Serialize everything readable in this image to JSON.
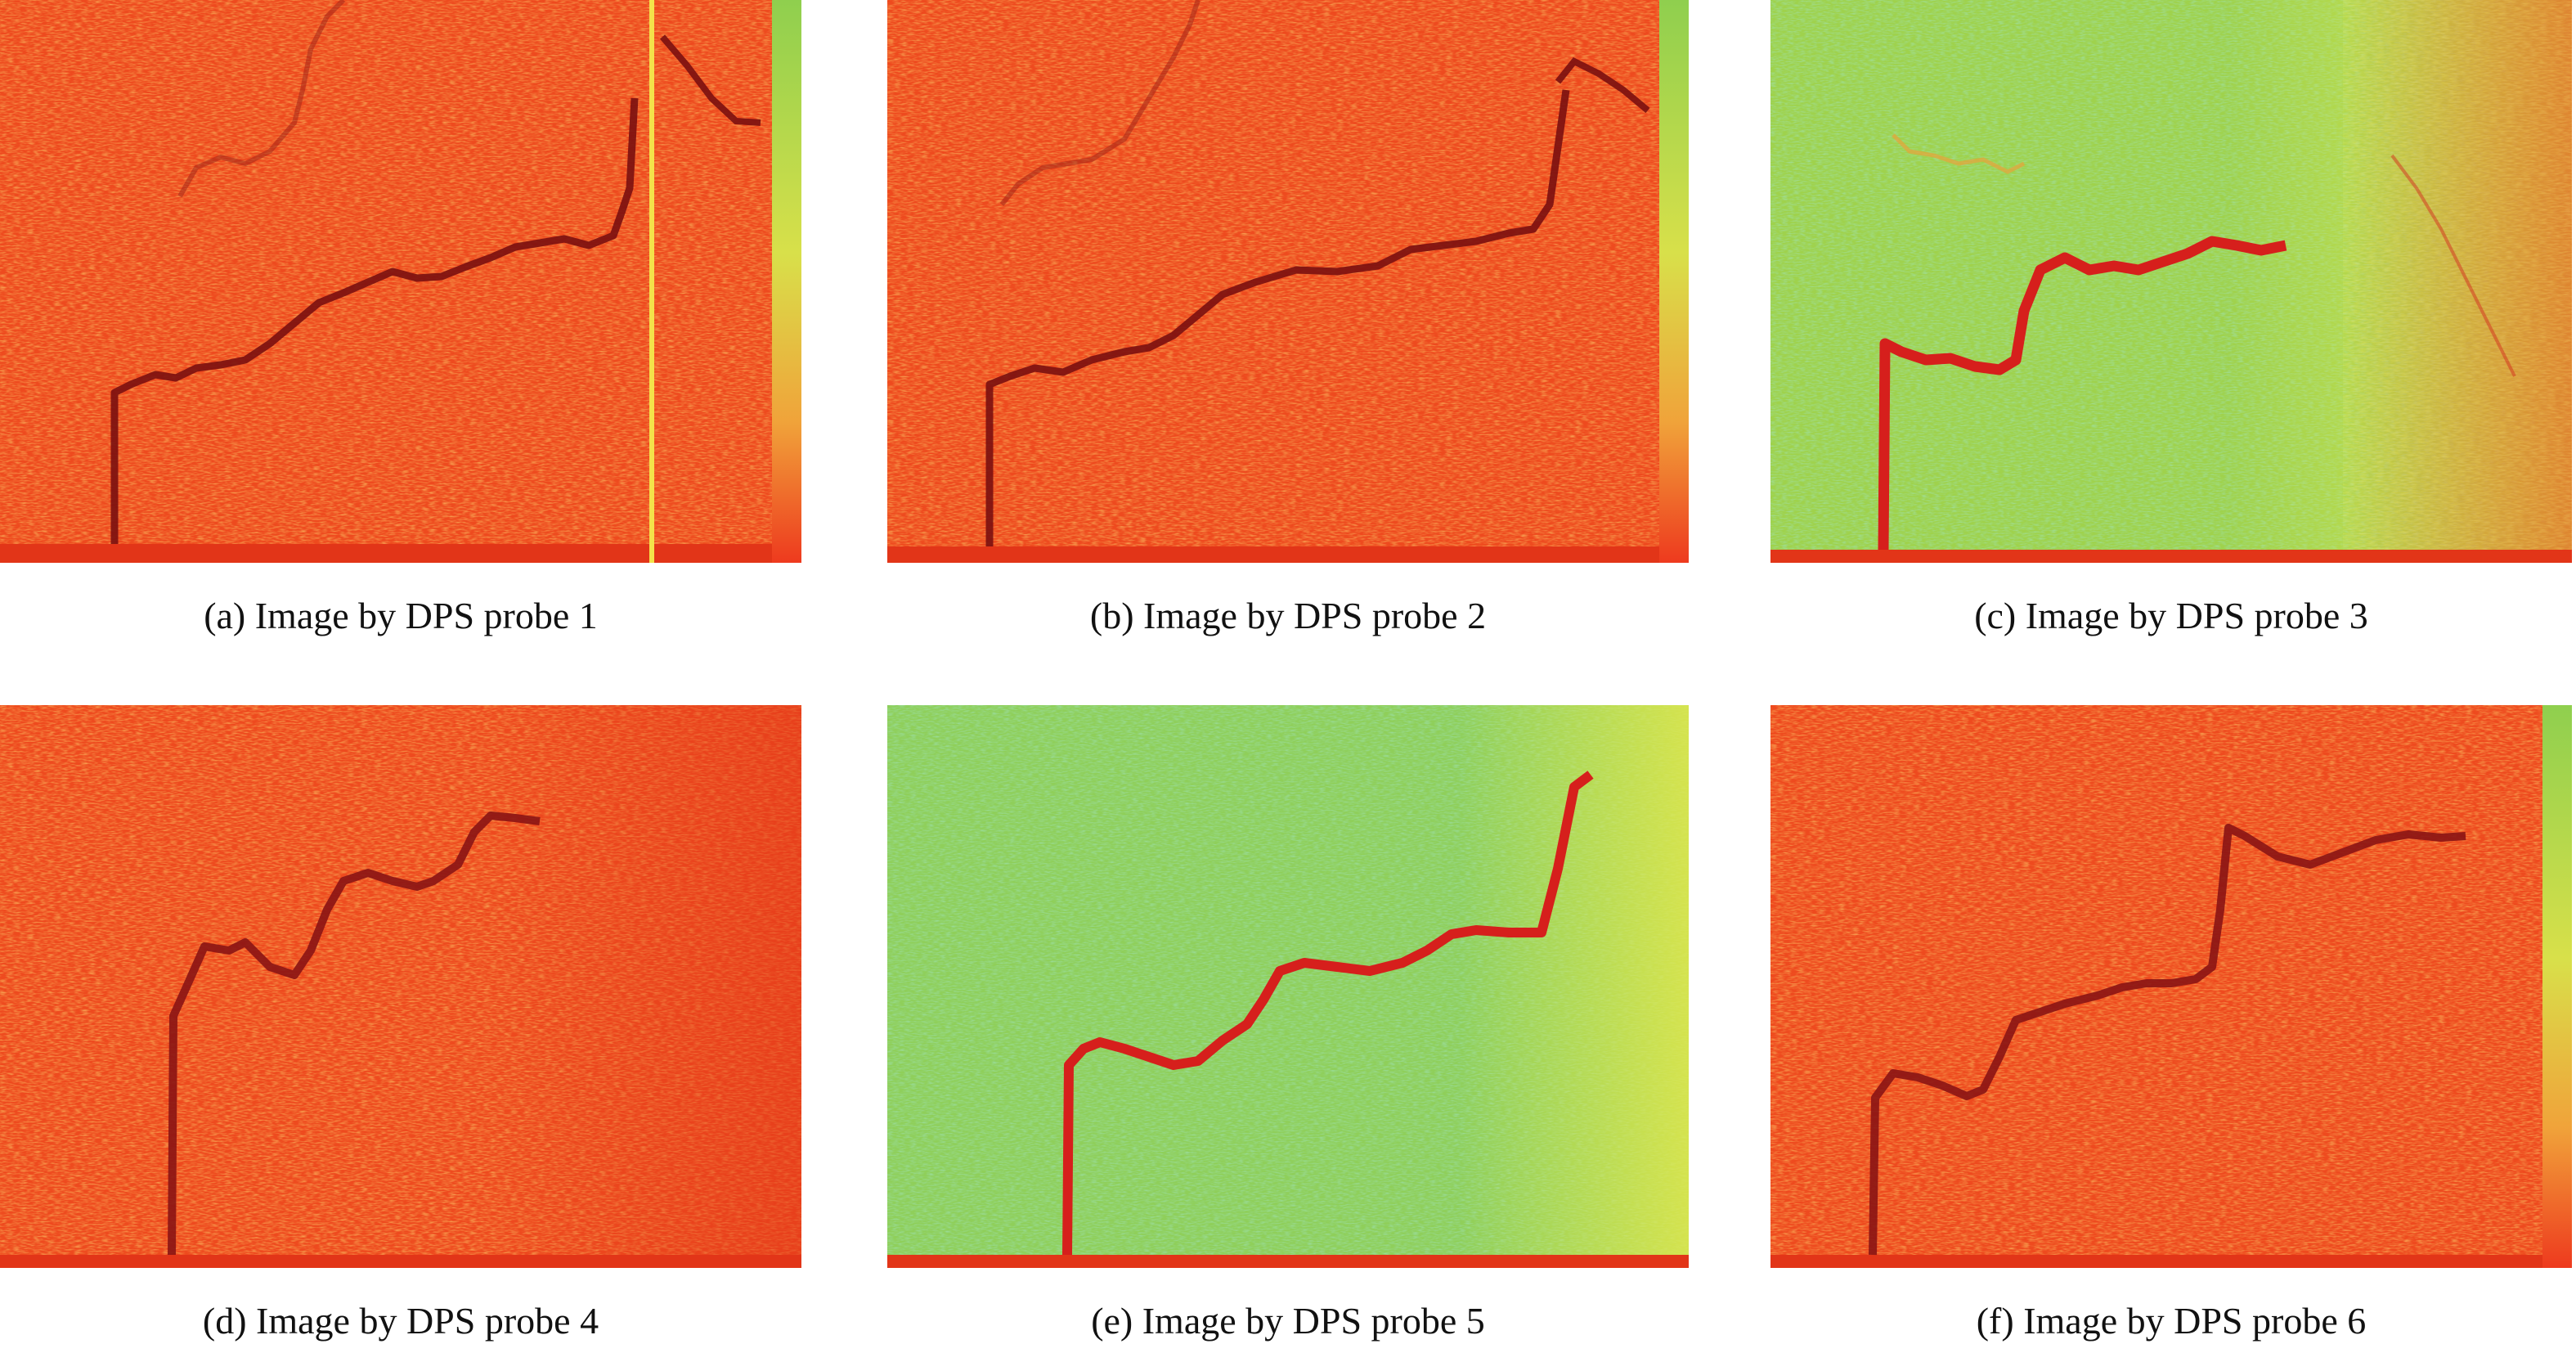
{
  "figure": {
    "panels": [
      {
        "id": "a",
        "caption": "(a) Image by DPS probe 1",
        "colormap_base": "#ee4a1e",
        "trace_color": "#7a0f10",
        "has_colorbar": true
      },
      {
        "id": "b",
        "caption": "(b) Image by DPS probe 2",
        "colormap_base": "#ee4a1e",
        "trace_color": "#7a0f10",
        "has_colorbar": true
      },
      {
        "id": "c",
        "caption": "(c) Image by DPS probe 3",
        "colormap_base": "#9fd24c",
        "trace_color": "#d61f1c",
        "has_colorbar": false
      },
      {
        "id": "d",
        "caption": "(d) Image by DPS probe 4",
        "colormap_base": "#ee4a1e",
        "trace_color": "#8a1414",
        "has_colorbar": false
      },
      {
        "id": "e",
        "caption": "(e) Image by DPS probe 5",
        "colormap_base": "#8fcf5a",
        "trace_color": "#d61f1c",
        "has_colorbar": false
      },
      {
        "id": "f",
        "caption": "(f) Image by DPS probe 6",
        "colormap_base": "#ee4a1e",
        "trace_color": "#8a1414",
        "has_colorbar": true
      }
    ]
  }
}
